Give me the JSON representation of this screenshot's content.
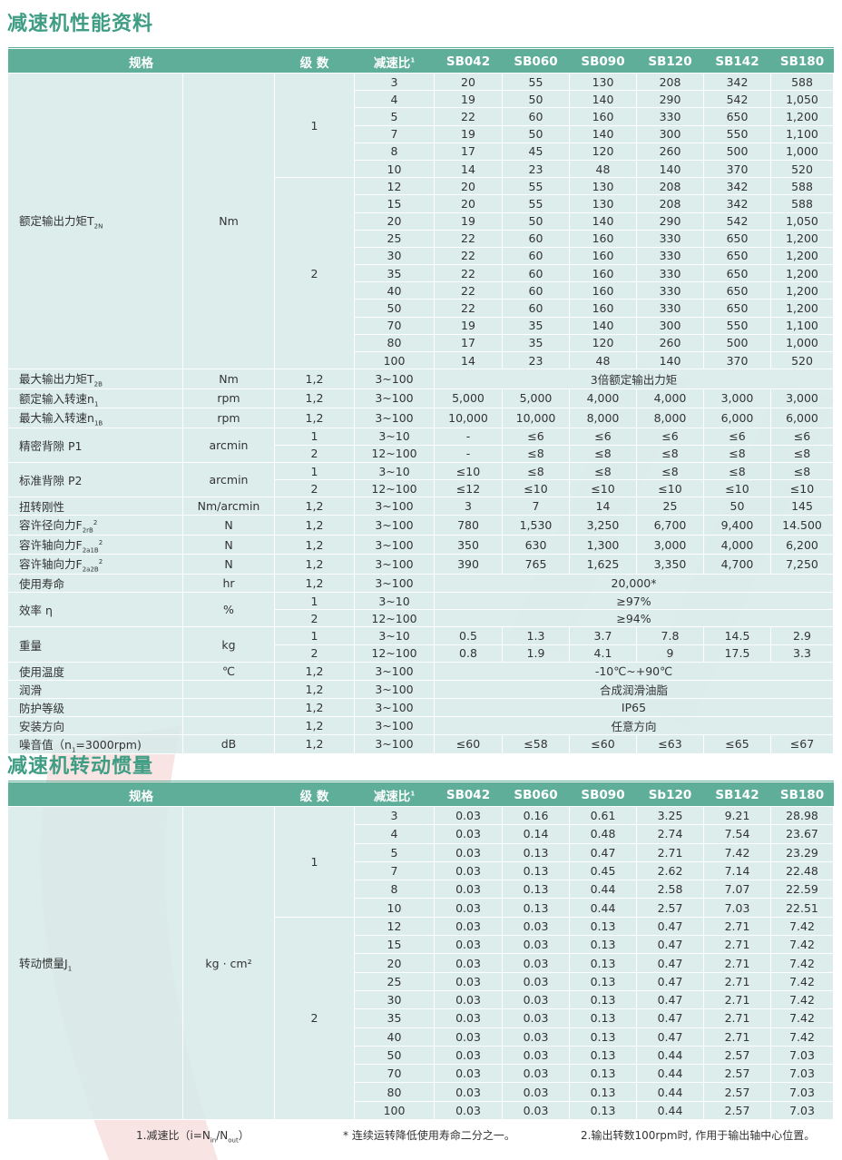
{
  "section1": {
    "title": "减速机性能资料",
    "headers": [
      "规格",
      "级 数",
      "减速比",
      "SB042",
      "SB060",
      "SB090",
      "SB120",
      "SB142",
      "SB180"
    ],
    "ratio_sup": "1",
    "groups": [
      {
        "spec": "额定输出力矩T",
        "sub": "2N",
        "unit": "Nm",
        "stages": [
          {
            "stage": "1",
            "rows": [
              [
                "3",
                "20",
                "55",
                "130",
                "208",
                "342",
                "588"
              ],
              [
                "4",
                "19",
                "50",
                "140",
                "290",
                "542",
                "1,050"
              ],
              [
                "5",
                "22",
                "60",
                "160",
                "330",
                "650",
                "1,200"
              ],
              [
                "7",
                "19",
                "50",
                "140",
                "300",
                "550",
                "1,100"
              ],
              [
                "8",
                "17",
                "45",
                "120",
                "260",
                "500",
                "1,000"
              ],
              [
                "10",
                "14",
                "23",
                "48",
                "140",
                "370",
                "520"
              ]
            ]
          },
          {
            "stage": "2",
            "rows": [
              [
                "12",
                "20",
                "55",
                "130",
                "208",
                "342",
                "588"
              ],
              [
                "15",
                "20",
                "55",
                "130",
                "208",
                "342",
                "588"
              ],
              [
                "20",
                "19",
                "50",
                "140",
                "290",
                "542",
                "1,050"
              ],
              [
                "25",
                "22",
                "60",
                "160",
                "330",
                "650",
                "1,200"
              ],
              [
                "30",
                "22",
                "60",
                "160",
                "330",
                "650",
                "1,200"
              ],
              [
                "35",
                "22",
                "60",
                "160",
                "330",
                "650",
                "1,200"
              ],
              [
                "40",
                "22",
                "60",
                "160",
                "330",
                "650",
                "1,200"
              ],
              [
                "50",
                "22",
                "60",
                "160",
                "330",
                "650",
                "1,200"
              ],
              [
                "70",
                "19",
                "35",
                "140",
                "300",
                "550",
                "1,100"
              ],
              [
                "80",
                "17",
                "35",
                "120",
                "260",
                "500",
                "1,000"
              ],
              [
                "100",
                "14",
                "23",
                "48",
                "140",
                "370",
                "520"
              ]
            ]
          }
        ]
      },
      {
        "spec": "最大输出力矩T",
        "sub": "2B",
        "unit": "Nm",
        "stages": [
          {
            "stage": "1,2",
            "rows": [
              [
                "3~100"
              ]
            ],
            "merged": "3倍额定输出力矩"
          }
        ]
      },
      {
        "spec": "额定输入转速n",
        "sub": "1",
        "unit": "rpm",
        "stages": [
          {
            "stage": "1,2",
            "rows": [
              [
                "3~100",
                "5,000",
                "5,000",
                "4,000",
                "4,000",
                "3,000",
                "3,000"
              ]
            ]
          }
        ]
      },
      {
        "spec": "最大输入转速n",
        "sub": "1B",
        "unit": "rpm",
        "stages": [
          {
            "stage": "1,2",
            "rows": [
              [
                "3~100",
                "10,000",
                "10,000",
                "8,000",
                "8,000",
                "6,000",
                "6,000"
              ]
            ]
          }
        ]
      },
      {
        "spec": "精密背隙 P1",
        "unit": "arcmin",
        "stages": [
          {
            "stage": "1",
            "rows": [
              [
                "3~10",
                "-",
                "≤6",
                "≤6",
                "≤6",
                "≤6",
                "≤6"
              ]
            ]
          },
          {
            "stage": "2",
            "rows": [
              [
                "12~100",
                "-",
                "≤8",
                "≤8",
                "≤8",
                "≤8",
                "≤8"
              ]
            ]
          }
        ]
      },
      {
        "spec": "标准背隙 P2",
        "unit": "arcmin",
        "stages": [
          {
            "stage": "1",
            "rows": [
              [
                "3~10",
                "≤10",
                "≤8",
                "≤8",
                "≤8",
                "≤8",
                "≤8"
              ]
            ]
          },
          {
            "stage": "2",
            "rows": [
              [
                "12~100",
                "≤12",
                "≤10",
                "≤10",
                "≤10",
                "≤10",
                "≤10"
              ]
            ]
          }
        ]
      },
      {
        "spec": "扭转刚性",
        "unit": "Nm/arcmin",
        "stages": [
          {
            "stage": "1,2",
            "rows": [
              [
                "3~100",
                "3",
                "7",
                "14",
                "25",
                "50",
                "145"
              ]
            ]
          }
        ]
      },
      {
        "spec": "容许径向力F",
        "sub": "2rB",
        "sup": "2",
        "unit": "N",
        "stages": [
          {
            "stage": "1,2",
            "rows": [
              [
                "3~100",
                "780",
                "1,530",
                "3,250",
                "6,700",
                "9,400",
                "14.500"
              ]
            ]
          }
        ]
      },
      {
        "spec": "容许轴向力F",
        "sub": "2a1B",
        "sup": "2",
        "unit": "N",
        "stages": [
          {
            "stage": "1,2",
            "rows": [
              [
                "3~100",
                "350",
                "630",
                "1,300",
                "3,000",
                "4,000",
                "6,200"
              ]
            ]
          }
        ]
      },
      {
        "spec": "容许轴向力F",
        "sub": "2a2B",
        "sup": "2",
        "unit": "N",
        "stages": [
          {
            "stage": "1,2",
            "rows": [
              [
                "3~100",
                "390",
                "765",
                "1,625",
                "3,350",
                "4,700",
                "7,250"
              ]
            ]
          }
        ]
      },
      {
        "spec": "使用寿命",
        "unit": "hr",
        "stages": [
          {
            "stage": "1,2",
            "rows": [
              [
                "3~100"
              ]
            ],
            "merged": "20,000*"
          }
        ]
      },
      {
        "spec": "效率 η",
        "unit": "%",
        "stages": [
          {
            "stage": "1",
            "rows": [
              [
                "3~10"
              ]
            ],
            "merged": "≥97%"
          },
          {
            "stage": "2",
            "rows": [
              [
                "12~100"
              ]
            ],
            "merged": "≥94%"
          }
        ]
      },
      {
        "spec": "重量",
        "unit": "kg",
        "stages": [
          {
            "stage": "1",
            "rows": [
              [
                "3~10",
                "0.5",
                "1.3",
                "3.7",
                "7.8",
                "14.5",
                "2.9"
              ]
            ]
          },
          {
            "stage": "2",
            "rows": [
              [
                "12~100",
                "0.8",
                "1.9",
                "4.1",
                "9",
                "17.5",
                "3.3"
              ]
            ]
          }
        ]
      },
      {
        "spec": "使用温度",
        "unit": "℃",
        "stages": [
          {
            "stage": "1,2",
            "rows": [
              [
                "3~100"
              ]
            ],
            "merged": "-10℃~+90℃"
          }
        ]
      },
      {
        "spec": "润滑",
        "unit": "",
        "stages": [
          {
            "stage": "1,2",
            "rows": [
              [
                "3~100"
              ]
            ],
            "merged": "合成润滑油脂"
          }
        ]
      },
      {
        "spec": "防护等级",
        "unit": "",
        "stages": [
          {
            "stage": "1,2",
            "rows": [
              [
                "3~100"
              ]
            ],
            "merged": "IP65"
          }
        ]
      },
      {
        "spec": "安装方向",
        "unit": "",
        "stages": [
          {
            "stage": "1,2",
            "rows": [
              [
                "3~100"
              ]
            ],
            "merged": "任意方向"
          }
        ]
      },
      {
        "spec": "噪音值（n",
        "sub": "1",
        "suffix": "=3000rpm)",
        "unit": "dB",
        "stages": [
          {
            "stage": "1,2",
            "rows": [
              [
                "3~100",
                "≤60",
                "≤58",
                "≤60",
                "≤63",
                "≤65",
                "≤67"
              ]
            ]
          }
        ]
      }
    ]
  },
  "section2": {
    "title": "减速机转动惯量",
    "headers": [
      "规格",
      "级 数",
      "减速比",
      "SB042",
      "SB060",
      "SB090",
      "Sb120",
      "SB142",
      "SB180"
    ],
    "ratio_sup": "1",
    "groups": [
      {
        "spec": "转动惯量J",
        "sub": "1",
        "unit": "kg · cm²",
        "stages": [
          {
            "stage": "1",
            "rows": [
              [
                "3",
                "0.03",
                "0.16",
                "0.61",
                "3.25",
                "9.21",
                "28.98"
              ],
              [
                "4",
                "0.03",
                "0.14",
                "0.48",
                "2.74",
                "7.54",
                "23.67"
              ],
              [
                "5",
                "0.03",
                "0.13",
                "0.47",
                "2.71",
                "7.42",
                "23.29"
              ],
              [
                "7",
                "0.03",
                "0.13",
                "0.45",
                "2.62",
                "7.14",
                "22.48"
              ],
              [
                "8",
                "0.03",
                "0.13",
                "0.44",
                "2.58",
                "7.07",
                "22.59"
              ],
              [
                "10",
                "0.03",
                "0.13",
                "0.44",
                "2.57",
                "7.03",
                "22.51"
              ]
            ]
          },
          {
            "stage": "2",
            "rows": [
              [
                "12",
                "0.03",
                "0.03",
                "0.13",
                "0.47",
                "2.71",
                "7.42"
              ],
              [
                "15",
                "0.03",
                "0.03",
                "0.13",
                "0.47",
                "2.71",
                "7.42"
              ],
              [
                "20",
                "0.03",
                "0.03",
                "0.13",
                "0.47",
                "2.71",
                "7.42"
              ],
              [
                "25",
                "0.03",
                "0.03",
                "0.13",
                "0.47",
                "2.71",
                "7.42"
              ],
              [
                "30",
                "0.03",
                "0.03",
                "0.13",
                "0.47",
                "2.71",
                "7.42"
              ],
              [
                "35",
                "0.03",
                "0.03",
                "0.13",
                "0.47",
                "2.71",
                "7.42"
              ],
              [
                "40",
                "0.03",
                "0.03",
                "0.13",
                "0.47",
                "2.71",
                "7.42"
              ],
              [
                "50",
                "0.03",
                "0.03",
                "0.13",
                "0.44",
                "2.57",
                "7.03"
              ],
              [
                "70",
                "0.03",
                "0.03",
                "0.13",
                "0.44",
                "2.57",
                "7.03"
              ],
              [
                "80",
                "0.03",
                "0.03",
                "0.13",
                "0.44",
                "2.57",
                "7.03"
              ],
              [
                "100",
                "0.03",
                "0.03",
                "0.13",
                "0.44",
                "2.57",
                "7.03"
              ]
            ]
          }
        ]
      }
    ]
  },
  "notes": {
    "n1": "1.减速比（i=N",
    "n1_sub1": "in",
    "n1_mid": "/N",
    "n1_sub2": "out",
    "n1_end": "）",
    "n2": "*  连续运转降低使用寿命二分之一。",
    "n3": "2.输出转数100rpm时, 作用于输出轴中心位置。"
  },
  "colors": {
    "accent": "#5fae99",
    "title": "#3f9d84",
    "body": "#d6eae9"
  }
}
